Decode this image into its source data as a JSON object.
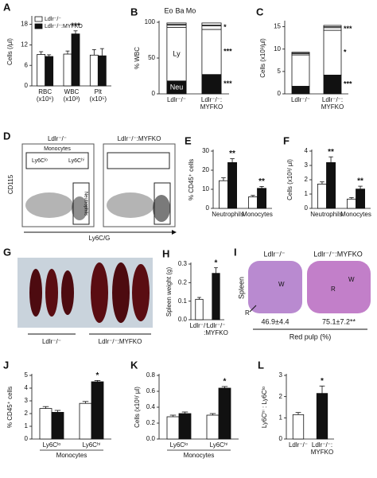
{
  "chart_data": [
    {
      "panel": "A",
      "type": "bar",
      "ylabel": "Cells (/µl)",
      "categories": [
        [
          "RBC",
          "(x10⁶)"
        ],
        [
          "WBC",
          "(x10³)"
        ],
        [
          "Plt",
          "(x10⁵)"
        ]
      ],
      "series": [
        {
          "name": "Ldlr⁻/⁻",
          "color": "#ffffff",
          "values": [
            9.2,
            9.3,
            9.0
          ],
          "errors": [
            0.8,
            0.9,
            1.6
          ]
        },
        {
          "name": "Ldlr⁻/⁻:MYFKO",
          "color": "#111111",
          "values": [
            8.6,
            15.2,
            8.8
          ],
          "errors": [
            0.5,
            0.9,
            2.1
          ],
          "significance": [
            null,
            "***",
            null
          ]
        }
      ],
      "ylim": [
        0,
        20
      ],
      "yticks": [
        0,
        6,
        12,
        18
      ],
      "legend": "upper left"
    },
    {
      "panel": "B",
      "type": "stacked_bar",
      "ylabel": "% WBC",
      "categories": [
        [
          "Ldlr⁻/⁻"
        ],
        [
          "Ldlr⁻/⁻:",
          "MYFKO"
        ]
      ],
      "series": [
        {
          "name": "Neu",
          "color": "#111111",
          "values": [
            18,
            27
          ],
          "significance": "***"
        },
        {
          "name": "Ly",
          "color": "#ffffff",
          "values": [
            75,
            63
          ],
          "significance": "***"
        },
        {
          "name": "Mo",
          "color": "#ffffff",
          "values": [
            3,
            5
          ],
          "significance": "*"
        },
        {
          "name": "Ba",
          "color": "#ffffff",
          "values": [
            1,
            1
          ]
        },
        {
          "name": "Eo",
          "color": "#ffffff",
          "values": [
            2,
            3
          ]
        }
      ],
      "ylim": [
        0,
        100
      ],
      "yticks": [
        0,
        50,
        100
      ],
      "segment_names": true
    },
    {
      "panel": "C",
      "type": "stacked_bar",
      "ylabel": "Cells (x10³/µl)",
      "categories": [
        [
          "Ldlr⁻/⁻"
        ],
        [
          "Ldlr⁻/⁻:",
          "MYFKO"
        ]
      ],
      "series": [
        {
          "name": "Neu",
          "color": "#111111",
          "values": [
            1.7,
            4.2
          ],
          "significance": "***"
        },
        {
          "name": "Ly",
          "color": "#ffffff",
          "values": [
            7.0,
            10.0
          ],
          "significance": "*"
        },
        {
          "name": "Mo",
          "color": "#ffffff",
          "values": [
            0.3,
            0.6
          ],
          "significance": "***"
        },
        {
          "name": "Ba",
          "color": "#ffffff",
          "values": [
            0.1,
            0.2
          ]
        },
        {
          "name": "Eo",
          "color": "#ffffff",
          "values": [
            0.2,
            0.3
          ]
        }
      ],
      "ylim": [
        0,
        16
      ],
      "yticks": [
        0,
        5,
        10,
        15
      ]
    },
    {
      "panel": "E",
      "type": "bar",
      "ylabel": "% CD45⁺ cells",
      "categories": [
        [
          "Neutrophils"
        ],
        [
          "Monocytes"
        ]
      ],
      "series": [
        {
          "name": "Ldlr⁻/⁻",
          "color": "#ffffff",
          "values": [
            14.5,
            6
          ],
          "errors": [
            1.5,
            0.8
          ]
        },
        {
          "name": "Ldlr⁻/⁻:MYFKO",
          "color": "#111111",
          "values": [
            24,
            10.5
          ],
          "errors": [
            2,
            1
          ],
          "significance": [
            "**",
            "**"
          ]
        }
      ],
      "ylim": [
        0,
        30
      ],
      "yticks": [
        0,
        10,
        20,
        30
      ]
    },
    {
      "panel": "F",
      "type": "bar",
      "ylabel": "Cells (x10³/ µl)",
      "categories": [
        [
          "Neutrophils"
        ],
        [
          "Monocytes"
        ]
      ],
      "series": [
        {
          "name": "Ldlr⁻/⁻",
          "color": "#ffffff",
          "values": [
            1.7,
            0.65
          ],
          "errors": [
            0.15,
            0.1
          ]
        },
        {
          "name": "Ldlr⁻/⁻:MYFKO",
          "color": "#111111",
          "values": [
            3.2,
            1.35
          ],
          "errors": [
            0.4,
            0.2
          ],
          "significance": [
            "**",
            "**"
          ]
        }
      ],
      "ylim": [
        0,
        4
      ],
      "yticks": [
        0,
        1,
        2,
        3,
        4
      ]
    },
    {
      "panel": "H",
      "type": "bar",
      "ylabel": "Spleen weight (g)",
      "categories": [
        [
          "Ldlr⁻/⁻"
        ],
        [
          "Ldlr⁻/⁻",
          ":MYFKO"
        ]
      ],
      "values": [
        0.11,
        0.25
      ],
      "errors": [
        0.01,
        0.03
      ],
      "colors": [
        "#ffffff",
        "#111111"
      ],
      "significance": [
        null,
        "*"
      ],
      "ylim": [
        0,
        0.3
      ],
      "yticks": [
        {
          "value": 0,
          "label": "0.0"
        },
        0.1,
        0.2,
        0.3
      ]
    },
    {
      "panel": "J",
      "type": "bar",
      "ylabel": "% CD45⁺ cells",
      "categories": [
        [
          "Ly6Cˡᵒ"
        ],
        [
          "Ly6Cʰⁱ"
        ]
      ],
      "group_label": "Monocytes",
      "series": [
        {
          "name": "Ldlr⁻/⁻",
          "color": "#ffffff",
          "values": [
            2.4,
            2.8
          ],
          "errors": [
            0.15,
            0.15
          ]
        },
        {
          "name": "Ldlr⁻/⁻:MYFKO",
          "color": "#111111",
          "values": [
            2.1,
            4.5
          ],
          "errors": [
            0.15,
            0.1
          ],
          "significance": [
            null,
            "*"
          ]
        }
      ],
      "ylim": [
        0,
        5
      ],
      "yticks": [
        0,
        1,
        2,
        3,
        4,
        5
      ]
    },
    {
      "panel": "K",
      "type": "bar",
      "ylabel": "Cells (x10³/ µl)",
      "categories": [
        [
          "Ly6Cˡᵒ"
        ],
        [
          "Ly6Cʰⁱ"
        ]
      ],
      "group_label": "Monocytes",
      "series": [
        {
          "name": "Ldlr⁻/⁻",
          "color": "#ffffff",
          "values": [
            0.28,
            0.3
          ],
          "errors": [
            0.02,
            0.02
          ]
        },
        {
          "name": "Ldlr⁻/⁻:MYFKO",
          "color": "#111111",
          "values": [
            0.32,
            0.64
          ],
          "errors": [
            0.02,
            0.02
          ],
          "significance": [
            null,
            "*"
          ]
        }
      ],
      "ylim": [
        0,
        0.8
      ],
      "yticks": [
        {
          "value": 0,
          "label": "0.0"
        },
        0.2,
        0.4,
        0.6,
        0.8
      ]
    },
    {
      "panel": "L",
      "type": "bar",
      "ylabel": "Ly6Cʰⁱ : Ly6Cˡᵒ",
      "categories": [
        [
          "Ldlr⁻/⁻"
        ],
        [
          "Ldlr⁻/⁻:",
          "MYFKO"
        ]
      ],
      "values": [
        1.15,
        2.15
      ],
      "errors": [
        0.1,
        0.35
      ],
      "colors": [
        "#ffffff",
        "#111111"
      ],
      "significance": [
        null,
        "*"
      ],
      "ylim": [
        0,
        3
      ],
      "yticks": [
        0,
        1,
        2,
        3
      ]
    }
  ],
  "panels": {
    "D": {
      "letter": "D",
      "left_title": "Ldlr⁻/⁻",
      "right_title": "Ldlr⁻/⁻:MYFKO",
      "monocytes": "Monocytes",
      "ly6c_lo": "Ly6Cˡᵒ",
      "ly6c_hi": "Ly6Cʰⁱ",
      "neutrophils": "Neutrophils",
      "y_axis": "CD115",
      "x_axis": "Ly6C/G"
    },
    "G": {
      "letter": "G",
      "left_label": "Ldlr⁻/⁻",
      "right_label": "Ldlr⁻/⁻:MYFKO"
    },
    "I": {
      "letter": "I",
      "side_label": "Spleen",
      "left_title": "Ldlr⁻/⁻",
      "right_title": "Ldlr⁻/⁻:MYFKO",
      "white_pulp": "W",
      "red_pulp": "R",
      "left_value": "46.9±4.4",
      "right_value": "75.1±7.2**",
      "footer": "Red pulp (%)"
    }
  }
}
